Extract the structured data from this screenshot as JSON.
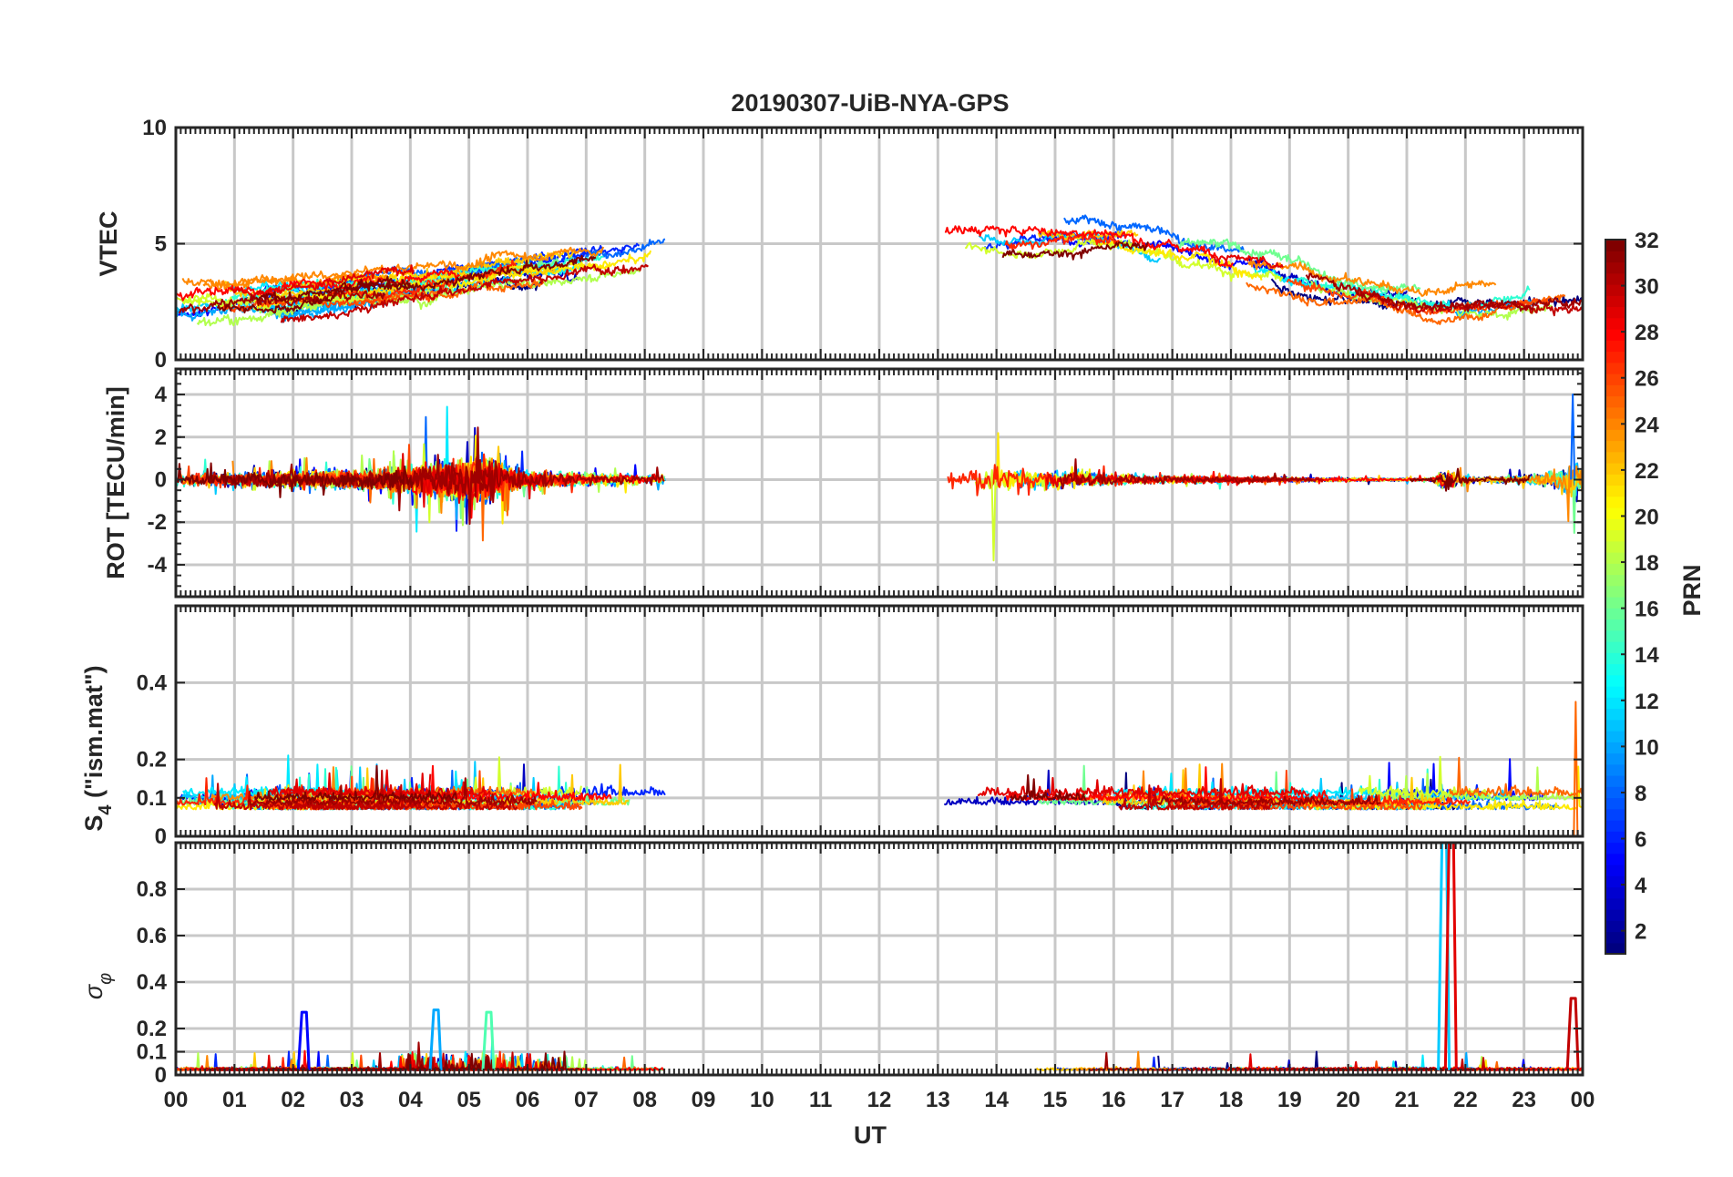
{
  "chart_data": {
    "type": "line",
    "title": "20190307-UiB-NYA-GPS",
    "xlabel": "UT",
    "x_ticks": [
      "00",
      "01",
      "02",
      "03",
      "04",
      "05",
      "06",
      "07",
      "08",
      "09",
      "10",
      "11",
      "12",
      "13",
      "14",
      "15",
      "16",
      "17",
      "18",
      "19",
      "20",
      "21",
      "22",
      "23",
      "00"
    ],
    "x_range_hours": [
      0,
      24
    ],
    "data_gap_hours": [
      8.35,
      13.0
    ],
    "colorbar": {
      "label": "PRN",
      "range": [
        1,
        32
      ],
      "ticks": [
        "32",
        "30",
        "28",
        "26",
        "24",
        "22",
        "20",
        "18",
        "16",
        "14",
        "12",
        "10",
        "8",
        "6",
        "4",
        "2"
      ],
      "colormap": "jet"
    },
    "panels": [
      {
        "id": "vtec",
        "ylabel": "VTEC",
        "ylim": [
          0,
          10
        ],
        "yticks": [
          "10",
          "5",
          "0"
        ],
        "baseline_trend": [
          [
            0,
            2.4
          ],
          [
            2,
            2.8
          ],
          [
            4,
            3.3
          ],
          [
            6,
            4.0
          ],
          [
            8.3,
            4.6
          ],
          [
            13.2,
            5.0
          ],
          [
            15.5,
            5.2
          ],
          [
            17.5,
            4.6
          ],
          [
            19.5,
            3.3
          ],
          [
            21.5,
            2.6
          ],
          [
            24,
            3.0
          ]
        ],
        "noise": 0.9
      },
      {
        "id": "rot",
        "ylabel": "ROT [TECU/min]",
        "ylim": [
          -5.5,
          5.2
        ],
        "yticks": [
          "4",
          "2",
          "0",
          "-2",
          "-4"
        ],
        "peaks": {
          "max": 4.0,
          "min": -3.8
        },
        "noise_profile": [
          [
            0,
            0.25
          ],
          [
            3.5,
            0.4
          ],
          [
            4.6,
            0.8
          ],
          [
            5.3,
            0.9
          ],
          [
            6,
            0.3
          ],
          [
            8.3,
            0.2
          ],
          [
            13.2,
            0.6
          ],
          [
            14.5,
            0.45
          ],
          [
            16.5,
            0.18
          ],
          [
            19.5,
            0.08
          ],
          [
            21.4,
            0.05
          ],
          [
            21.6,
            0.45
          ],
          [
            22.2,
            0.08
          ],
          [
            23.3,
            0.25
          ],
          [
            24,
            0.9
          ]
        ]
      },
      {
        "id": "s4",
        "ylabel_main": "S",
        "ylabel_sub": "4",
        "ylabel_rest": " (\"ism.mat\")",
        "ylim": [
          0,
          0.6
        ],
        "yticks": [
          "0.4",
          "0.2",
          "0.1",
          "0"
        ],
        "baseline": 0.07,
        "peaks": {
          "max": 0.35
        }
      },
      {
        "id": "sigma_phi",
        "ylabel_main": "σ",
        "ylabel_sub": "φ",
        "ylim": [
          0,
          1.0
        ],
        "yticks": [
          "0.8",
          "0.6",
          "0.4",
          "0.2",
          "0.1",
          "0"
        ],
        "baseline": 0.02,
        "spikes": [
          [
            2.15,
            0.27
          ],
          [
            4.4,
            0.28
          ],
          [
            5.3,
            0.27
          ],
          [
            21.6,
            1.0
          ],
          [
            21.72,
            1.0
          ],
          [
            23.8,
            0.33
          ]
        ]
      }
    ]
  }
}
